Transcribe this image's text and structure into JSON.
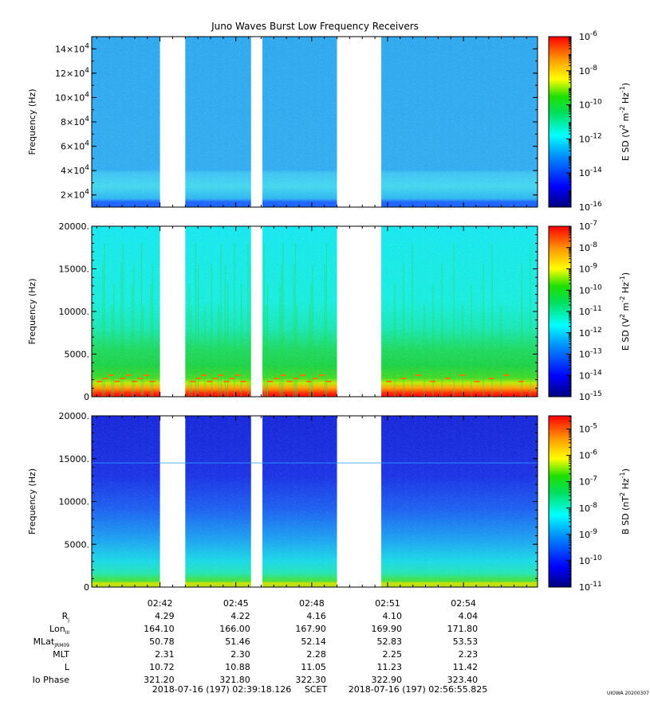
{
  "title": "Juno Waves Burst Low Frequency Receivers",
  "credit": "UIOWA 20200307",
  "time_axis": {
    "tick_labels": [
      "02:42",
      "02:45",
      "02:48",
      "02:51",
      "02:54"
    ],
    "start": "2018-07-16 (197) 02:39:18.126",
    "end": "2018-07-16 (197) 02:56:55.825",
    "frame_label": "SCET"
  },
  "ephemeris": {
    "rows": [
      {
        "label": "R",
        "sub": "J",
        "values": [
          "4.29",
          "4.22",
          "4.16",
          "4.10",
          "4.04"
        ]
      },
      {
        "label": "Lon",
        "sub": "III",
        "values": [
          "164.10",
          "166.00",
          "167.90",
          "169.90",
          "171.80"
        ]
      },
      {
        "label": "MLat",
        "sub": "JRM09",
        "values": [
          "50.78",
          "51.46",
          "52.14",
          "52.83",
          "53.53"
        ]
      },
      {
        "label": "MLT",
        "sub": "",
        "values": [
          "2.31",
          "2.30",
          "2.28",
          "2.25",
          "2.23"
        ]
      },
      {
        "label": "L",
        "sub": "",
        "values": [
          "10.72",
          "10.88",
          "11.05",
          "11.23",
          "11.42"
        ]
      },
      {
        "label": "Io Phase",
        "sub": "",
        "values": [
          "321.20",
          "321.80",
          "322.30",
          "322.90",
          "323.40"
        ]
      }
    ]
  },
  "data_gaps_minutes": [
    [
      2.7,
      3.7
    ],
    [
      6.3,
      6.75
    ],
    [
      9.7,
      11.45
    ]
  ],
  "colors": {
    "background": "#ffffff",
    "colormap": [
      "#00007f",
      "#0000ff",
      "#0080ff",
      "#00ffff",
      "#80ff80",
      "#00e000",
      "#ffff00",
      "#ffa000",
      "#ff4000",
      "#ff0000"
    ]
  },
  "chart_data": [
    {
      "type": "heatmap",
      "panel": "top",
      "ylabel": "Frequency (Hz)",
      "y_tick_labels": [
        {
          "m": "2",
          "e": "4",
          "v": 20000
        },
        {
          "m": "4",
          "e": "4",
          "v": 40000
        },
        {
          "m": "6",
          "e": "4",
          "v": 60000
        },
        {
          "m": "8",
          "e": "4",
          "v": 80000
        },
        {
          "m": "10",
          "e": "4",
          "v": 100000
        },
        {
          "m": "12",
          "e": "4",
          "v": 120000
        },
        {
          "m": "14",
          "e": "4",
          "v": 140000
        }
      ],
      "ylim": [
        10000,
        150000
      ],
      "colorbar_label_base": "E SD (V",
      "colorbar_label": "E SD (V^2 m^-2 Hz^-1)",
      "colorbar_exponents": [
        "-6",
        "-8",
        "-10",
        "-12",
        "-14",
        "-16"
      ],
      "colorbar_log_range": [
        -16,
        -6
      ],
      "log_scale_colorbar": true
    },
    {
      "type": "heatmap",
      "panel": "middle",
      "ylabel": "Frequency (Hz)",
      "y_tick_labels": [
        {
          "t": "0",
          "v": 0
        },
        {
          "t": "5000.",
          "v": 5000
        },
        {
          "t": "10000.",
          "v": 10000
        },
        {
          "t": "15000.",
          "v": 15000
        },
        {
          "t": "20000.",
          "v": 20000
        }
      ],
      "ylim": [
        0,
        20000
      ],
      "colorbar_label_base": "E SD (V",
      "colorbar_label": "E SD (V^2 m^-2 Hz^-1)",
      "colorbar_exponents": [
        "-7",
        "-8",
        "-9",
        "-10",
        "-11",
        "-12",
        "-13",
        "-14",
        "-15"
      ],
      "colorbar_log_range": [
        -15,
        -7
      ],
      "log_scale_colorbar": true
    },
    {
      "type": "heatmap",
      "panel": "bottom",
      "ylabel": "Frequency (Hz)",
      "y_tick_labels": [
        {
          "t": "0",
          "v": 0
        },
        {
          "t": "5000.",
          "v": 5000
        },
        {
          "t": "10000.",
          "v": 10000
        },
        {
          "t": "15000.",
          "v": 15000
        },
        {
          "t": "20000.",
          "v": 20000
        }
      ],
      "ylim": [
        0,
        20000
      ],
      "colorbar_label_base": "B SD (nT",
      "colorbar_label": "B SD (nT^2 Hz^-1)",
      "colorbar_exponents": [
        "-5",
        "-6",
        "-7",
        "-8",
        "-9",
        "-10",
        "-11"
      ],
      "colorbar_log_range": [
        -11,
        -4.5
      ],
      "log_scale_colorbar": true
    }
  ]
}
